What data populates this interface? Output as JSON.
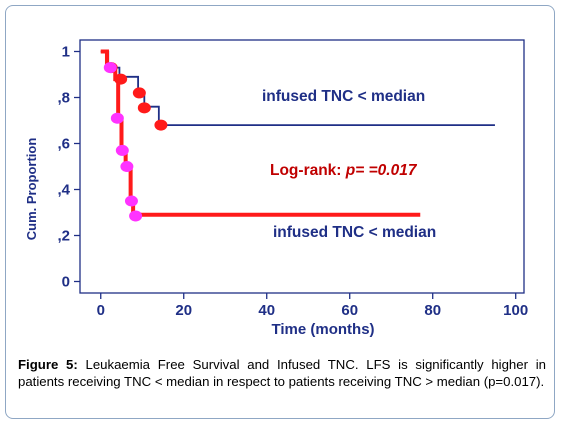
{
  "chart_data": {
    "type": "line",
    "chart_style": "kaplan-meier step survival curves",
    "xlabel": "Time (months)",
    "ylabel": "Cum. Proportion",
    "xlim": [
      -5,
      102
    ],
    "ylim": [
      -0.05,
      1.05
    ],
    "xticks": [
      0,
      20,
      40,
      60,
      80,
      100
    ],
    "xtick_labels": [
      "0",
      "20",
      "40",
      "60",
      "80",
      "100"
    ],
    "yticks": [
      0,
      0.2,
      0.4,
      0.6,
      0.8,
      1.0
    ],
    "ytick_labels": [
      "0",
      ",2",
      ",4",
      ",6",
      ",8",
      "1"
    ],
    "grid": false,
    "series": [
      {
        "color": "#1f2f86",
        "steps": [
          [
            0,
            1.0
          ],
          [
            1.8,
            0.93
          ],
          [
            4.5,
            0.89
          ],
          [
            9.0,
            0.82
          ],
          [
            10.5,
            0.76
          ],
          [
            14.0,
            0.68
          ],
          [
            95.0,
            0.68
          ]
        ],
        "censor_marks": [
          [
            2.5,
            0.93
          ],
          [
            4.8,
            0.88
          ],
          [
            9.3,
            0.82
          ],
          [
            10.5,
            0.755
          ],
          [
            14.5,
            0.68
          ]
        ]
      },
      {
        "color": "#ff1a1a",
        "steps": [
          [
            0,
            1.0
          ],
          [
            1.5,
            0.93
          ],
          [
            3.5,
            0.88
          ],
          [
            4.2,
            0.71
          ],
          [
            5.0,
            0.57
          ],
          [
            6.0,
            0.5
          ],
          [
            7.2,
            0.35
          ],
          [
            7.8,
            0.29
          ],
          [
            77.0,
            0.29
          ]
        ],
        "censor_marks": [
          [
            2.3,
            0.93
          ],
          [
            4.0,
            0.71
          ],
          [
            5.2,
            0.57
          ],
          [
            6.3,
            0.5
          ],
          [
            7.4,
            0.35
          ],
          [
            8.4,
            0.285
          ]
        ]
      }
    ],
    "censor_mark_color": "#ff33ff",
    "annotations": {
      "upper_label": "infused TNC < median",
      "lower_label": "infused TNC < median",
      "logrank_prefix": "Log-rank: ",
      "logrank_value": "p= =0.017"
    }
  },
  "caption": {
    "label": "Figure 5:",
    "text": " Leukaemia Free Survival and Infused TNC. LFS is significantly higher in patients receiving TNC < median in respect to patients receiving TNC > median (p=0.017)."
  }
}
